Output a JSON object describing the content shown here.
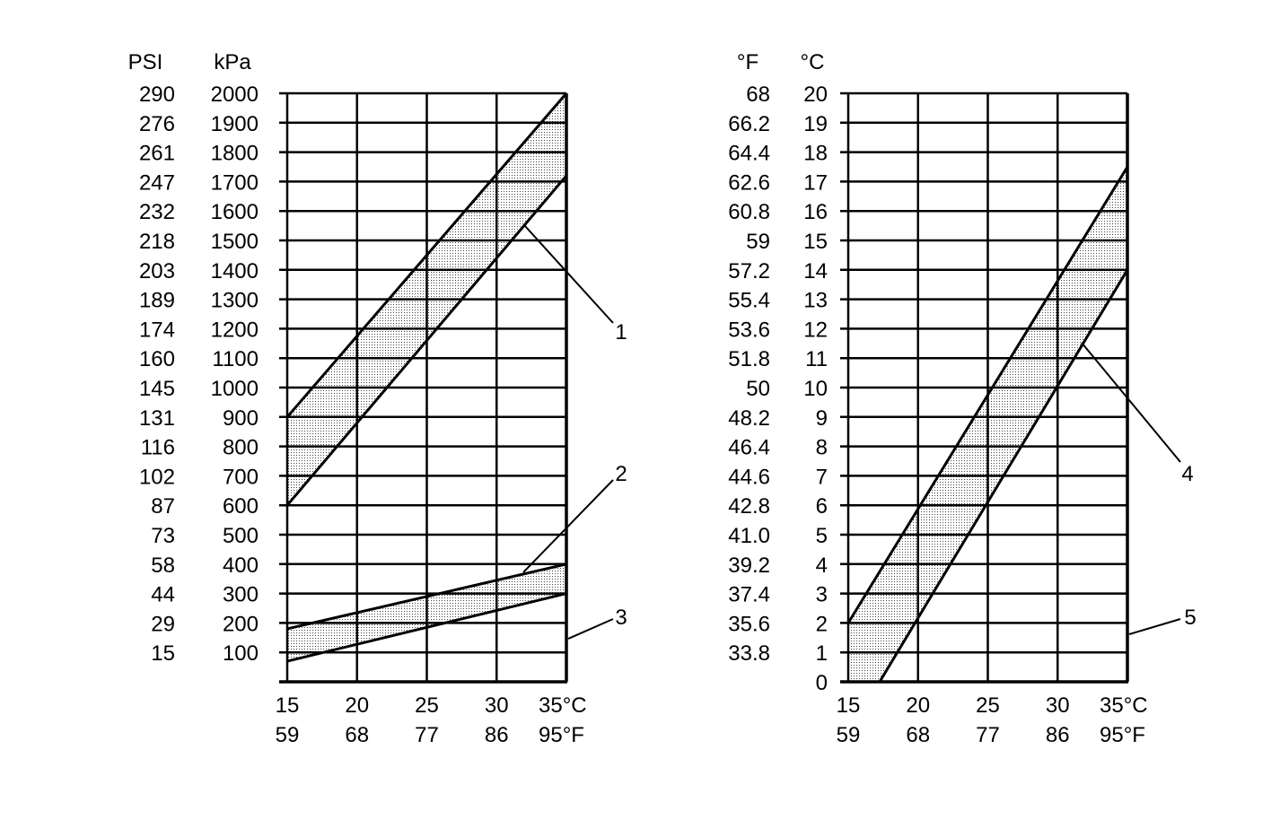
{
  "chart_data": [
    {
      "type": "area",
      "y_axes": [
        {
          "label": "PSI",
          "tick_labels": [
            "15",
            "29",
            "44",
            "58",
            "73",
            "87",
            "102",
            "116",
            "131",
            "145",
            "160",
            "174",
            "189",
            "203",
            "218",
            "232",
            "247",
            "261",
            "276",
            "290"
          ]
        },
        {
          "label": "kPa",
          "tick_labels": [
            "100",
            "200",
            "300",
            "400",
            "500",
            "600",
            "700",
            "800",
            "900",
            "1000",
            "1100",
            "1200",
            "1300",
            "1400",
            "1500",
            "1600",
            "1700",
            "1800",
            "1900",
            "2000"
          ]
        }
      ],
      "ylim": [
        0,
        2000
      ],
      "xlim": [
        15,
        35
      ],
      "x_ticks_c": [
        "15",
        "20",
        "25",
        "30",
        "35°C"
      ],
      "x_ticks_f": [
        "59",
        "68",
        "77",
        "86",
        "95°F"
      ],
      "grid": true,
      "bands": [
        {
          "upper": [
            [
              15,
              900
            ],
            [
              35,
              2000
            ]
          ],
          "lower": [
            [
              15,
              600
            ],
            [
              35,
              1720
            ]
          ]
        },
        {
          "upper": [
            [
              15,
              180
            ],
            [
              35,
              400
            ]
          ],
          "lower": [
            [
              15,
              70
            ],
            [
              35,
              300
            ]
          ]
        }
      ],
      "callouts": [
        "1",
        "2",
        "3"
      ]
    },
    {
      "type": "area",
      "y_axes": [
        {
          "label": "°F",
          "tick_labels": [
            "33.8",
            "35.6",
            "37.4",
            "39.2",
            "41.0",
            "42.8",
            "44.6",
            "46.4",
            "48.2",
            "50",
            "51.8",
            "53.6",
            "55.4",
            "57.2",
            "59",
            "60.8",
            "62.6",
            "64.4",
            "66.2",
            "68"
          ]
        },
        {
          "label": "°C",
          "tick_labels": [
            "0",
            "1",
            "2",
            "3",
            "4",
            "5",
            "6",
            "7",
            "8",
            "9",
            "10",
            "11",
            "12",
            "13",
            "14",
            "15",
            "16",
            "17",
            "18",
            "19",
            "20"
          ]
        }
      ],
      "ylim": [
        0,
        20
      ],
      "xlim": [
        15,
        35
      ],
      "x_ticks_c": [
        "15",
        "20",
        "25",
        "30",
        "35°C"
      ],
      "x_ticks_f": [
        "59",
        "68",
        "77",
        "86",
        "95°F"
      ],
      "grid": true,
      "bands": [
        {
          "upper": [
            [
              15,
              2
            ],
            [
              35,
              17.5
            ]
          ],
          "lower": [
            [
              15,
              0
            ],
            [
              17.25,
              0
            ],
            [
              35,
              14
            ]
          ]
        }
      ],
      "callouts": [
        "4",
        "5"
      ]
    }
  ]
}
